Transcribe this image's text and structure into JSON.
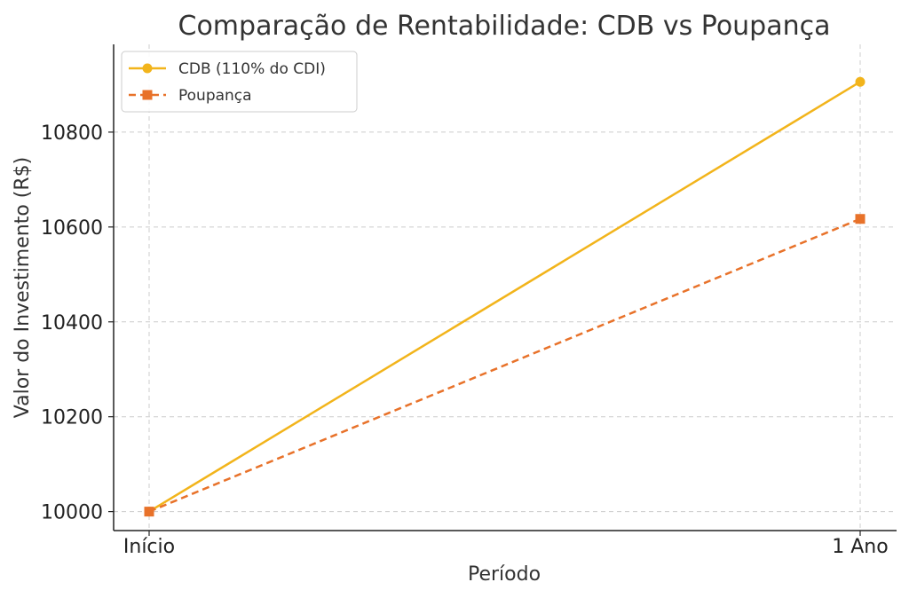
{
  "chart_data": {
    "type": "line",
    "title": "Comparação de Rentabilidade: CDB vs Poupança",
    "xlabel": "Período",
    "ylabel": "Valor do Investimento (R$)",
    "categories": [
      "Início",
      "1 Ano"
    ],
    "ylim": [
      9960,
      10985
    ],
    "yticks": [
      10000,
      10200,
      10400,
      10600,
      10800
    ],
    "yticks_text": [
      "10000",
      "10200",
      "10400",
      "10600",
      "10800"
    ],
    "grid": true,
    "legend_position": "top-left",
    "series": [
      {
        "name": "CDB (110% do CDI)",
        "values": [
          10000,
          10906
        ],
        "color": "#f2b41b",
        "line_style": "solid",
        "marker": "circle"
      },
      {
        "name": "Poupança",
        "values": [
          10000,
          10617
        ],
        "color": "#e8722a",
        "line_style": "dashed",
        "marker": "square"
      }
    ]
  }
}
